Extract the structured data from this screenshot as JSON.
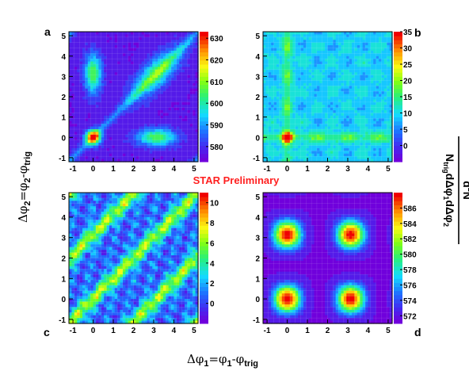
{
  "figure": {
    "annotation": "STAR Preliminary",
    "annotation_color": "#ff2020",
    "xlabel": {
      "main": "Δφ",
      "sub1": "1",
      "eq": "=φ",
      "sub2": "1",
      "dash": "-φ",
      "sub3": "trig"
    },
    "ylabel": {
      "main": "Δφ",
      "sub1": "2",
      "eq": "=φ",
      "sub2": "2",
      "dash": "-φ",
      "sub3": "trig"
    },
    "zlabel": {
      "numerator": "1",
      "n": "N",
      "n_sub": "trig",
      "d1": "dΔφ",
      "d1_sub": "1",
      "d2": "dΔφ",
      "d2_sub": "2",
      "top": "d",
      "top_sup": "2",
      "top_n": "N"
    },
    "colormap": "ROOT rainbow (purple-blue-cyan-green-yellow-orange-red)"
  },
  "chart_data": [
    {
      "type": "heatmap",
      "panel_label": "a",
      "xlim": [
        -1.2,
        5.2
      ],
      "ylim": [
        -1.2,
        5.2
      ],
      "x_ticks": [
        "-1",
        "0",
        "1",
        "2",
        "3",
        "4",
        "5"
      ],
      "y_ticks": [
        "-1",
        "0",
        "1",
        "2",
        "3",
        "4",
        "5"
      ],
      "zlim": [
        573,
        633
      ],
      "z_ticks": [
        "580",
        "590",
        "600",
        "610",
        "620",
        "630"
      ],
      "features": [
        {
          "x": 0.0,
          "y": 0.0,
          "z": 633
        },
        {
          "x": 0.0,
          "y": 3.14,
          "z": 612
        },
        {
          "x": 3.14,
          "y": 0.0,
          "z": 612
        },
        {
          "x": 3.14,
          "y": 3.14,
          "z": 604
        }
      ]
    },
    {
      "type": "heatmap",
      "panel_label": "b",
      "xlim": [
        -1.2,
        5.2
      ],
      "ylim": [
        -1.2,
        5.2
      ],
      "x_ticks": [
        "-1",
        "0",
        "1",
        "2",
        "3",
        "4",
        "5"
      ],
      "y_ticks": [
        "-1",
        "0",
        "1",
        "2",
        "3",
        "4",
        "5"
      ],
      "zlim": [
        -5,
        35
      ],
      "z_ticks": [
        "0",
        "5",
        "10",
        "15",
        "20",
        "25",
        "30",
        "35"
      ],
      "features": [
        {
          "x": 0.0,
          "y": 0.0,
          "z": 35
        },
        {
          "x": 0.0,
          "y": 3.14,
          "z": 12
        },
        {
          "x": 3.14,
          "y": 0.0,
          "z": 12
        },
        {
          "x": 3.14,
          "y": 3.14,
          "z": 9
        }
      ]
    },
    {
      "type": "heatmap",
      "panel_label": "c",
      "xlim": [
        -1.2,
        5.2
      ],
      "ylim": [
        -1.2,
        5.2
      ],
      "x_ticks": [
        "-1",
        "0",
        "1",
        "2",
        "3",
        "4",
        "5"
      ],
      "y_ticks": [
        "-1",
        "0",
        "1",
        "2",
        "3",
        "4",
        "5"
      ],
      "zlim": [
        -2,
        11
      ],
      "z_ticks": [
        "0",
        "2",
        "4",
        "6",
        "8",
        "10"
      ],
      "features": [
        {
          "x": 0.0,
          "y": 0.0,
          "z": 7,
          "note": "ridge along Δφ2 = Δφ1"
        },
        {
          "x": 0.0,
          "y": 3.14,
          "z": 7,
          "note": "ridge along Δφ2 = Δφ1 + π"
        }
      ]
    },
    {
      "type": "heatmap",
      "panel_label": "d",
      "xlim": [
        -1.2,
        5.2
      ],
      "ylim": [
        -1.2,
        5.2
      ],
      "x_ticks": [
        "-1",
        "0",
        "1",
        "2",
        "3",
        "4",
        "5"
      ],
      "y_ticks": [
        "-1",
        "0",
        "1",
        "2",
        "3",
        "4",
        "5"
      ],
      "zlim": [
        571,
        588
      ],
      "z_ticks": [
        "572",
        "574",
        "576",
        "578",
        "580",
        "582",
        "584",
        "586"
      ],
      "features": [
        {
          "x": 0.0,
          "y": 0.0,
          "z": 588
        },
        {
          "x": 0.0,
          "y": 3.14,
          "z": 588
        },
        {
          "x": 3.14,
          "y": 0.0,
          "z": 588
        },
        {
          "x": 3.14,
          "y": 3.14,
          "z": 588
        }
      ]
    }
  ]
}
